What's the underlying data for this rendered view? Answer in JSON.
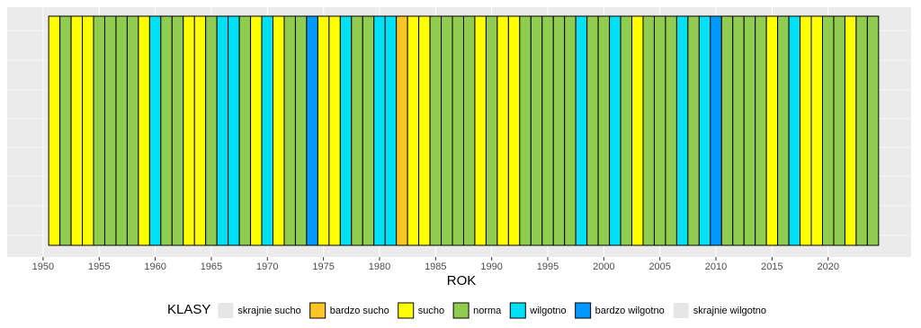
{
  "chart_data": {
    "type": "stripes",
    "x_label": "ROK",
    "legend_title": "KLASY",
    "legend": [
      {
        "name": "skrajnie sucho",
        "color": "#e6e6e6"
      },
      {
        "name": "bardzo sucho",
        "color": "#ffc425"
      },
      {
        "name": "sucho",
        "color": "#ffff00"
      },
      {
        "name": "norma",
        "color": "#8fcc4f"
      },
      {
        "name": "wilgotno",
        "color": "#00e0f5"
      },
      {
        "name": "bardzo wilgotno",
        "color": "#0099ff"
      },
      {
        "name": "skrajnie wilgotno",
        "color": "#e6e6e6"
      }
    ],
    "x": [
      1951,
      1952,
      1953,
      1954,
      1955,
      1956,
      1957,
      1958,
      1959,
      1960,
      1961,
      1962,
      1963,
      1964,
      1965,
      1966,
      1967,
      1968,
      1969,
      1970,
      1971,
      1972,
      1973,
      1974,
      1975,
      1976,
      1977,
      1978,
      1979,
      1980,
      1981,
      1982,
      1983,
      1984,
      1985,
      1986,
      1987,
      1988,
      1989,
      1990,
      1991,
      1992,
      1993,
      1994,
      1995,
      1996,
      1997,
      1998,
      1999,
      2000,
      2001,
      2002,
      2003,
      2004,
      2005,
      2006,
      2007,
      2008,
      2009,
      2010,
      2011,
      2012,
      2013,
      2014,
      2015,
      2016,
      2017,
      2018,
      2019,
      2020,
      2021,
      2022,
      2023,
      2024
    ],
    "classes": [
      "sucho",
      "norma",
      "sucho",
      "sucho",
      "norma",
      "norma",
      "norma",
      "norma",
      "sucho",
      "wilgotno",
      "norma",
      "norma",
      "sucho",
      "sucho",
      "norma",
      "wilgotno",
      "wilgotno",
      "norma",
      "sucho",
      "wilgotno",
      "sucho",
      "norma",
      "norma",
      "bardzo wilgotno",
      "sucho",
      "sucho",
      "wilgotno",
      "norma",
      "norma",
      "wilgotno",
      "wilgotno",
      "bardzo sucho",
      "sucho",
      "sucho",
      "norma",
      "norma",
      "norma",
      "norma",
      "sucho",
      "norma",
      "sucho",
      "sucho",
      "norma",
      "norma",
      "norma",
      "norma",
      "norma",
      "wilgotno",
      "norma",
      "norma",
      "wilgotno",
      "norma",
      "sucho",
      "norma",
      "norma",
      "norma",
      "wilgotno",
      "norma",
      "wilgotno",
      "bardzo wilgotno",
      "norma",
      "norma",
      "norma",
      "norma",
      "sucho",
      "norma",
      "wilgotno",
      "sucho",
      "sucho",
      "norma",
      "norma",
      "sucho",
      "norma",
      "norma"
    ],
    "xlim": [
      1946.8,
      2027.4
    ],
    "xticks": [
      1950,
      1955,
      1960,
      1965,
      1970,
      1975,
      1980,
      1985,
      1990,
      1995,
      2000,
      2005,
      2010,
      2015,
      2020
    ],
    "grid": true
  }
}
